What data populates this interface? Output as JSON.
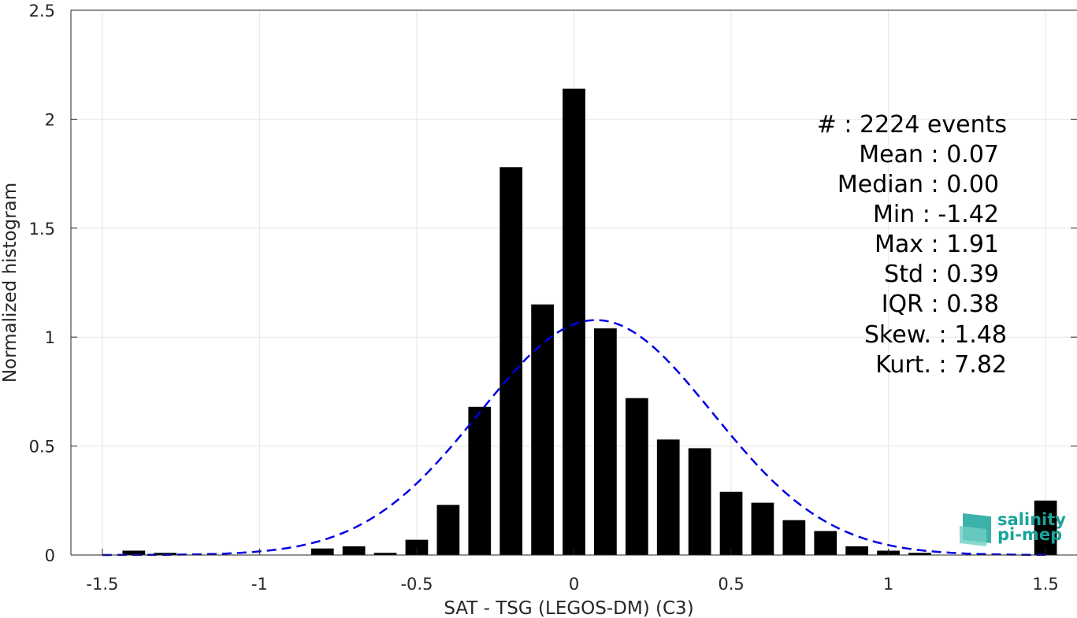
{
  "chart_data": {
    "type": "bar",
    "xlabel": "SAT - TSG (LEGOS-DM) (C3)",
    "ylabel": "Normalized histogram",
    "xlim": [
      -1.6,
      1.6
    ],
    "ylim": [
      0,
      2.5
    ],
    "xticks": [
      -1.5,
      -1,
      -0.5,
      0,
      0.5,
      1,
      1.5
    ],
    "xtick_labels": [
      "-1.5",
      "-1",
      "-0.5",
      "0",
      "0.5",
      "1",
      "1.5"
    ],
    "yticks": [
      0,
      0.5,
      1,
      1.5,
      2,
      2.5
    ],
    "ytick_labels": [
      "0",
      "0.5",
      "1",
      "1.5",
      "2",
      "2.5"
    ],
    "grid": true,
    "bin_centers": [
      -1.4,
      -1.3,
      -1.2,
      -1.1,
      -1.0,
      -0.9,
      -0.8,
      -0.7,
      -0.6,
      -0.5,
      -0.4,
      -0.3,
      -0.2,
      -0.1,
      0.0,
      0.1,
      0.2,
      0.3,
      0.4,
      0.5,
      0.6,
      0.7,
      0.8,
      0.9,
      1.0,
      1.1,
      1.2,
      1.3,
      1.5
    ],
    "values": [
      0.02,
      0.01,
      0,
      0,
      0,
      0,
      0.03,
      0.04,
      0.01,
      0.07,
      0.23,
      0.68,
      1.78,
      1.15,
      2.14,
      1.04,
      0.72,
      0.53,
      0.49,
      0.29,
      0.24,
      0.16,
      0.11,
      0.04,
      0.02,
      0.01,
      0,
      0,
      0.25
    ],
    "bar_color": "#000000",
    "fit_curve": {
      "style": "dashed",
      "color": "#0000e6",
      "mean": 0.07,
      "std": 0.37
    },
    "stats": [
      {
        "label": "#",
        "sep": ": 2224 events"
      },
      {
        "label": "Mean",
        "sep": ": 0.07"
      },
      {
        "label": "Median",
        "sep": ": 0.00"
      },
      {
        "label": "Min",
        "sep": ": -1.42"
      },
      {
        "label": "Max",
        "sep": ": 1.91"
      },
      {
        "label": "Std",
        "sep": ": 0.39"
      },
      {
        "label": "IQR",
        "sep": ": 0.38"
      },
      {
        "label": "Skew.",
        "sep": ": 1.48"
      },
      {
        "label": "Kurt.",
        "sep": ": 7.82"
      }
    ]
  },
  "logo": {
    "line1": "salinity",
    "line2": "pi-mep",
    "color": "#1aa39a"
  }
}
